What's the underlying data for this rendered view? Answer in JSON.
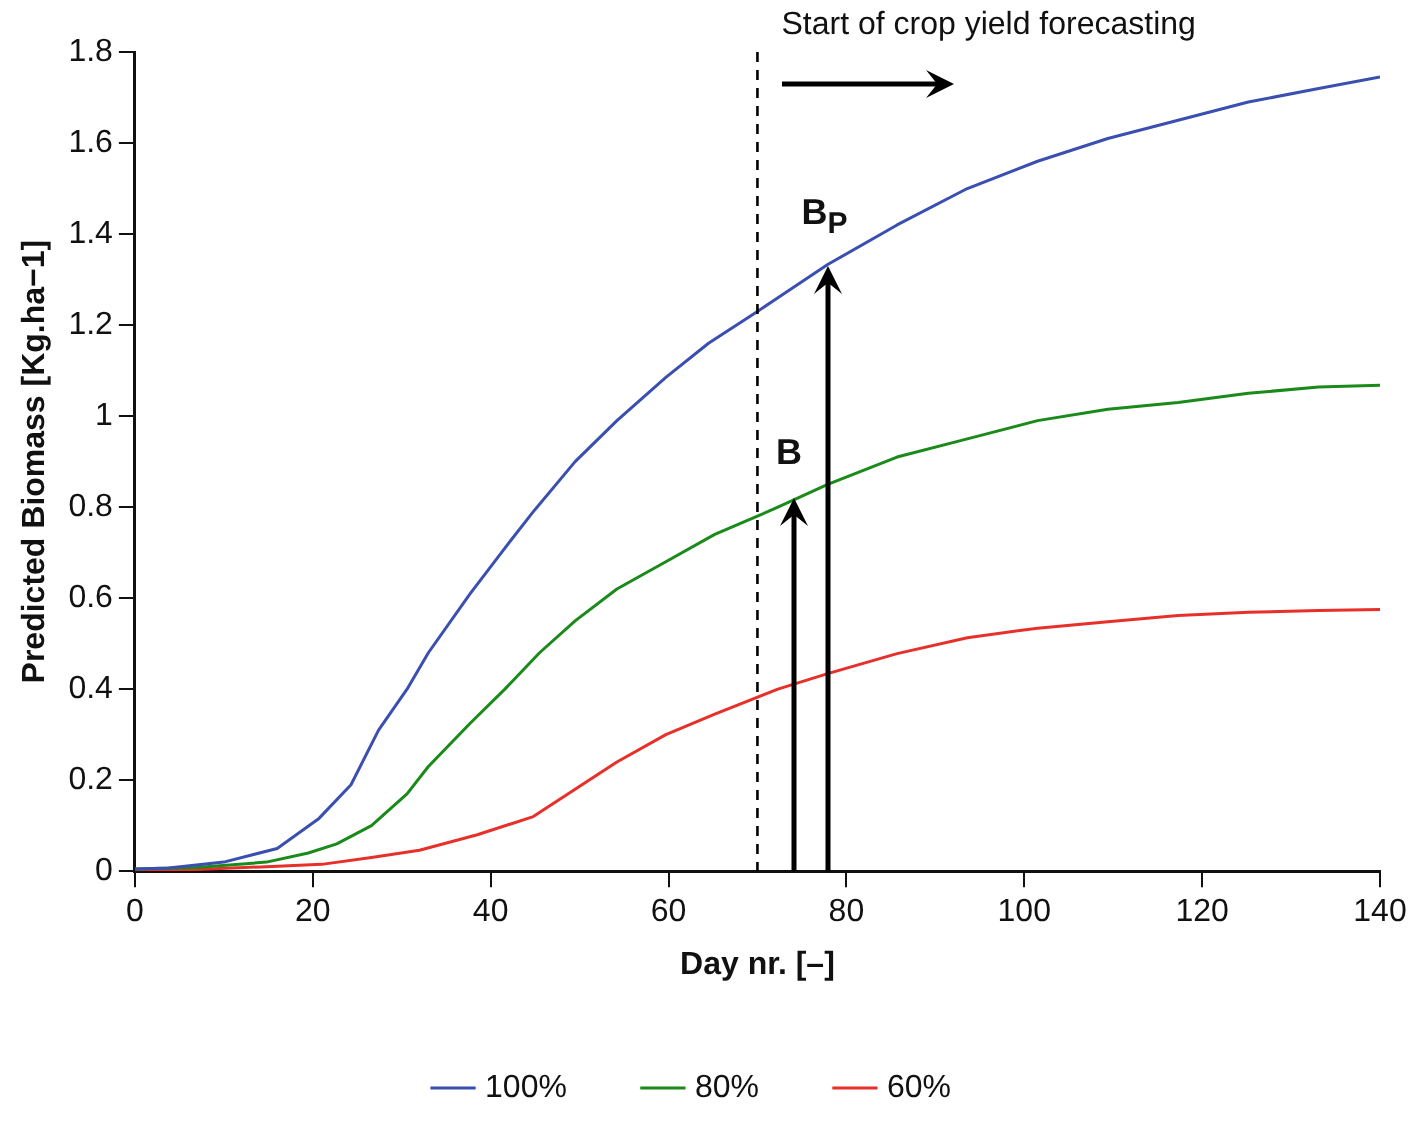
{
  "chart_data": {
    "type": "line",
    "xlabel": "Day nr. [–]",
    "ylabel": "Predicted Biomass [Kg.ha−1]",
    "xlim": [
      0,
      140
    ],
    "xticks": [
      0,
      20,
      40,
      60,
      80,
      100,
      120,
      140
    ],
    "ylim": [
      0,
      1.8
    ],
    "yticks": [
      0,
      0.2,
      0.4,
      0.6,
      0.8,
      1,
      1.2,
      1.4,
      1.6,
      1.8
    ],
    "grid": false,
    "legend": "bottom",
    "marker": "none",
    "line_style": "solid",
    "series": [
      {
        "name": "100%",
        "color": "#3a4fb0",
        "x": [
          0,
          3.8,
          10,
          16,
          20.7,
          24.3,
          27.4,
          30.6,
          33,
          37.7,
          41.6,
          44.8,
          49.5,
          54.2,
          59.7,
          64.5,
          70,
          72.3,
          77.9,
          85.7,
          93.6,
          101.5,
          109.4,
          117.3,
          125.2,
          133.1,
          140
        ],
        "values": [
          0.005,
          0.007,
          0.02,
          0.05,
          0.116,
          0.19,
          0.31,
          0.4,
          0.48,
          0.61,
          0.71,
          0.79,
          0.9,
          0.99,
          1.085,
          1.16,
          1.23,
          1.26,
          1.333,
          1.42,
          1.5,
          1.56,
          1.61,
          1.65,
          1.69,
          1.72,
          1.745
        ]
      },
      {
        "name": "80%",
        "color": "#1a8a1a",
        "x": [
          0,
          6.9,
          14.8,
          19.5,
          22.7,
          26.6,
          30.6,
          33,
          37.7,
          41.6,
          45.5,
          49.5,
          54.2,
          59.7,
          65.2,
          70,
          72.3,
          77.9,
          85.7,
          93.6,
          101.5,
          109.4,
          117.3,
          125.2,
          133.1,
          140
        ],
        "values": [
          0.005,
          0.008,
          0.02,
          0.04,
          0.06,
          0.1,
          0.17,
          0.23,
          0.325,
          0.4,
          0.48,
          0.55,
          0.62,
          0.68,
          0.74,
          0.78,
          0.8,
          0.85,
          0.91,
          0.95,
          0.99,
          1.015,
          1.03,
          1.05,
          1.064,
          1.068
        ]
      },
      {
        "name": "60%",
        "color": "#e8302a",
        "x": [
          0,
          6.9,
          14.8,
          21,
          26.6,
          32,
          38.5,
          44.8,
          49.5,
          54.2,
          59.7,
          65.2,
          72.3,
          77.9,
          85.7,
          93.6,
          101.5,
          109.4,
          117.3,
          125.2,
          133.1,
          140
        ],
        "values": [
          0.003,
          0.004,
          0.01,
          0.015,
          0.03,
          0.046,
          0.08,
          0.12,
          0.18,
          0.24,
          0.3,
          0.345,
          0.4,
          0.434,
          0.478,
          0.513,
          0.534,
          0.548,
          0.562,
          0.569,
          0.573,
          0.575
        ]
      }
    ],
    "ref_lines": [
      {
        "axis": "x",
        "value": 70,
        "label": "Start of crop yield forecasting",
        "line_style": "dashed",
        "color": "#000000"
      }
    ],
    "annotations": [
      {
        "text": "B",
        "x": 74,
        "y": 0.82
      },
      {
        "text": "B$_{P}$",
        "x": 78,
        "y": 1.33
      }
    ]
  }
}
